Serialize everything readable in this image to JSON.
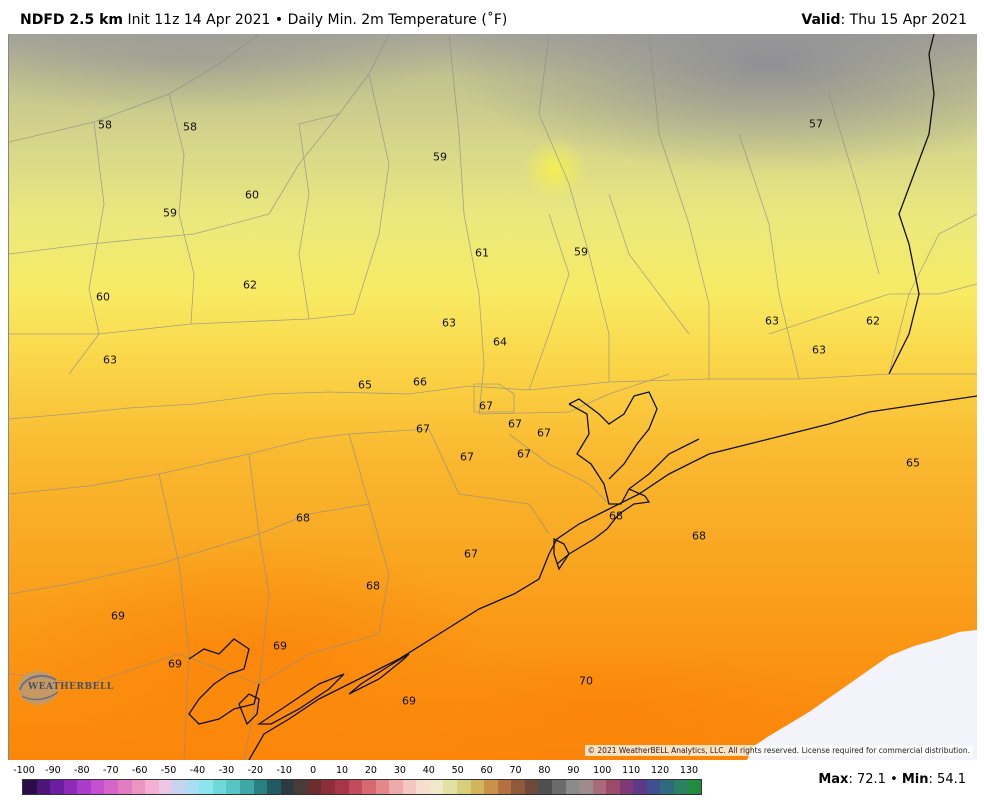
{
  "header": {
    "product": "NDFD 2.5 km",
    "init": "Init 11z 14 Apr 2021",
    "bullet": "•",
    "field": "Daily Min. 2m Temperature (˚F)",
    "valid_label": "Valid",
    "valid_value": ": Thu 15 Apr 2021"
  },
  "labels": [
    "58",
    "58",
    "59",
    "57",
    "60",
    "59",
    "61",
    "59",
    "60",
    "62",
    "63",
    "64",
    "63",
    "62",
    "63",
    "63",
    "65",
    "66",
    "67",
    "67",
    "67",
    "67",
    "67",
    "67",
    "65",
    "68",
    "68",
    "68",
    "67",
    "68",
    "69",
    "69",
    "69",
    "70",
    "69"
  ],
  "copyright": "© 2021 WeatherBELL Analytics, LLC. All rights reserved. License required for commercial distribution.",
  "logo": {
    "text": "WEATHERBELL",
    "icon": "weatherbell-logo-icon"
  },
  "colorbar": {
    "ticks": [
      "-100",
      "-90",
      "-80",
      "-70",
      "-60",
      "-50",
      "-40",
      "-30",
      "-20",
      "-10",
      "0",
      "10",
      "20",
      "30",
      "40",
      "50",
      "60",
      "70",
      "80",
      "90",
      "100",
      "110",
      "120",
      "130"
    ],
    "colors": [
      "#2a0c4a",
      "#4b1678",
      "#6b1fa0",
      "#8d2bb8",
      "#a93cc8",
      "#c44fcf",
      "#d565c9",
      "#e27cc0",
      "#ec95c0",
      "#f2b0d2",
      "#e9c7e6",
      "#c8d3ef",
      "#a9def4",
      "#8be4ee",
      "#6fd8d8",
      "#58c4c4",
      "#40a7a7",
      "#2a7f83",
      "#1f5b61",
      "#2d3a40",
      "#4a3a3a",
      "#6a2e2e",
      "#8d2e3b",
      "#a8364a",
      "#c24c5c",
      "#d46a70",
      "#e3888a",
      "#edaaaa",
      "#f3c6c2",
      "#f6ddd0",
      "#f0e9c8",
      "#e3e0a3",
      "#d8cf7d",
      "#d2b45c",
      "#c7934a",
      "#b5703f",
      "#8f5a3a",
      "#6d4a3a",
      "#4f4f4f",
      "#6b6b6b",
      "#8a8a8a",
      "#9e8c8c",
      "#a86b7a",
      "#9c4a6a",
      "#7d3a76",
      "#5c3a86",
      "#3f4f8f",
      "#2f6b7e",
      "#2a8060",
      "#1f8c40"
    ]
  },
  "stats": {
    "max_label": "Max",
    "max_value": ": 72.1",
    "bullet": "•",
    "min_label": "Min",
    "min_value": ": 54.1"
  },
  "colors": {
    "cool_grey": "#9a9b9f",
    "olive": "#c9c98a",
    "pale_yellow": "#e8e67e",
    "yellow": "#f7ee6a",
    "yellow_orange": "#fbd246",
    "amber": "#f9b62c",
    "orange": "#f9a21e",
    "deep_orange": "#fb8c0e",
    "ocean_pale": "#f3f4fb"
  }
}
